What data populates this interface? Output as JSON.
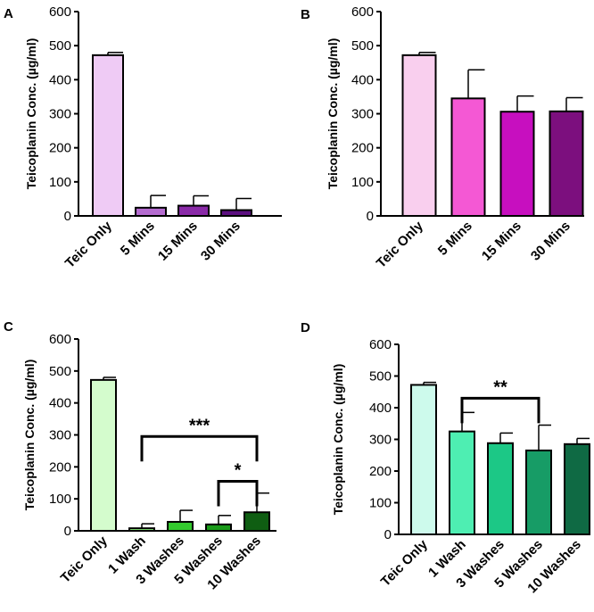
{
  "chart_data": [
    {
      "panel": "A",
      "type": "bar",
      "ylabel": "Teicoplanin Conc. (µg/ml)",
      "ylim": [
        0,
        600
      ],
      "yticks": [
        0,
        100,
        200,
        300,
        400,
        500,
        600
      ],
      "categories": [
        "Teic Only",
        "5 Mins",
        "15 Mins",
        "30 Mins"
      ],
      "values": [
        472,
        24,
        30,
        17
      ],
      "errors": [
        8,
        36,
        29,
        34
      ],
      "colors": [
        "#efcbf5",
        "#b56cd0",
        "#8a2aa8",
        "#5c1080"
      ],
      "significance": []
    },
    {
      "panel": "B",
      "type": "bar",
      "ylabel": "Teicoplanin Conc. (µg/ml)",
      "ylim": [
        0,
        600
      ],
      "yticks": [
        0,
        100,
        200,
        300,
        400,
        500,
        600
      ],
      "categories": [
        "Teic Only",
        "5 Mins",
        "15 Mins",
        "30 Mins"
      ],
      "values": [
        472,
        345,
        306,
        307
      ],
      "errors": [
        8,
        84,
        46,
        40
      ],
      "colors": [
        "#f9cfee",
        "#f458d4",
        "#c70fbf",
        "#7c0f7e"
      ],
      "significance": []
    },
    {
      "panel": "C",
      "type": "bar",
      "ylabel": "Teicoplanin Conc. (µg/ml)",
      "ylim": [
        0,
        600
      ],
      "yticks": [
        0,
        100,
        200,
        300,
        400,
        500,
        600
      ],
      "categories": [
        "Teic Only",
        "1 Wash",
        "3 Washes",
        "5 Washes",
        "10 Washes"
      ],
      "values": [
        472,
        8,
        28,
        20,
        58
      ],
      "errors": [
        8,
        14,
        36,
        28,
        60
      ],
      "colors": [
        "#d4fccd",
        "#8ef27f",
        "#33c92e",
        "#1a9a1a",
        "#0f5e12"
      ],
      "significance": [
        {
          "from": 1,
          "to": 4,
          "level": 295,
          "label": "***"
        },
        {
          "from": 3,
          "to": 4,
          "level": 155,
          "label": "*"
        }
      ]
    },
    {
      "panel": "D",
      "type": "bar",
      "ylabel": "Teicoplanin Conc. (µg/ml)",
      "ylim": [
        0,
        600
      ],
      "yticks": [
        0,
        100,
        200,
        300,
        400,
        500,
        600
      ],
      "categories": [
        "Teic Only",
        "1 Wash",
        "3 Washes",
        "5 Washes",
        "10 Washes"
      ],
      "values": [
        472,
        325,
        288,
        265,
        285
      ],
      "errors": [
        8,
        60,
        32,
        80,
        18
      ],
      "colors": [
        "#cdfaec",
        "#4eeeb2",
        "#1cc886",
        "#179c66",
        "#0f6a44"
      ],
      "significance": [
        {
          "from": 1,
          "to": 3,
          "level": 430,
          "label": "**"
        }
      ]
    }
  ]
}
